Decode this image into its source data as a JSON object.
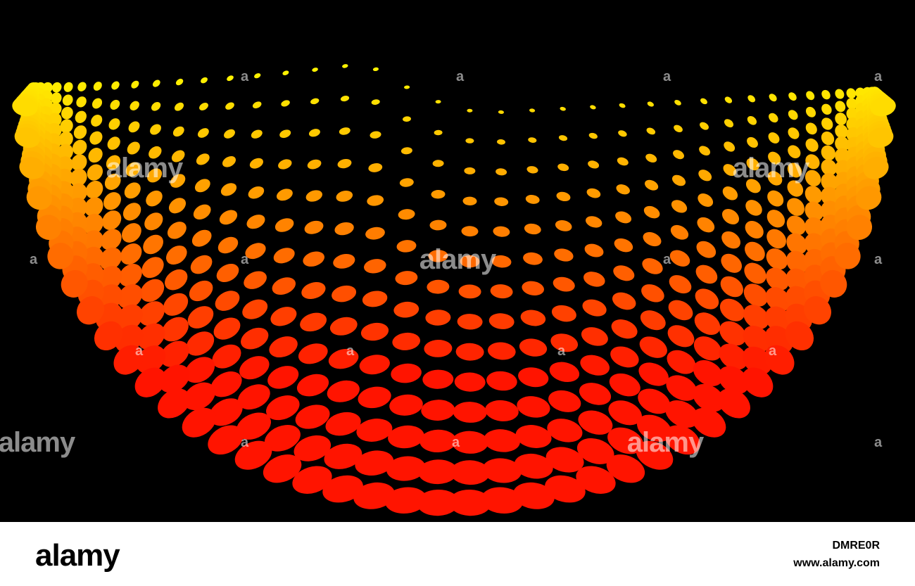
{
  "watermark": {
    "large": "alamy",
    "small": "a"
  },
  "footer": {
    "logo": "alamy",
    "image_id": "DMRE0R",
    "url": "www.alamy.com"
  }
}
